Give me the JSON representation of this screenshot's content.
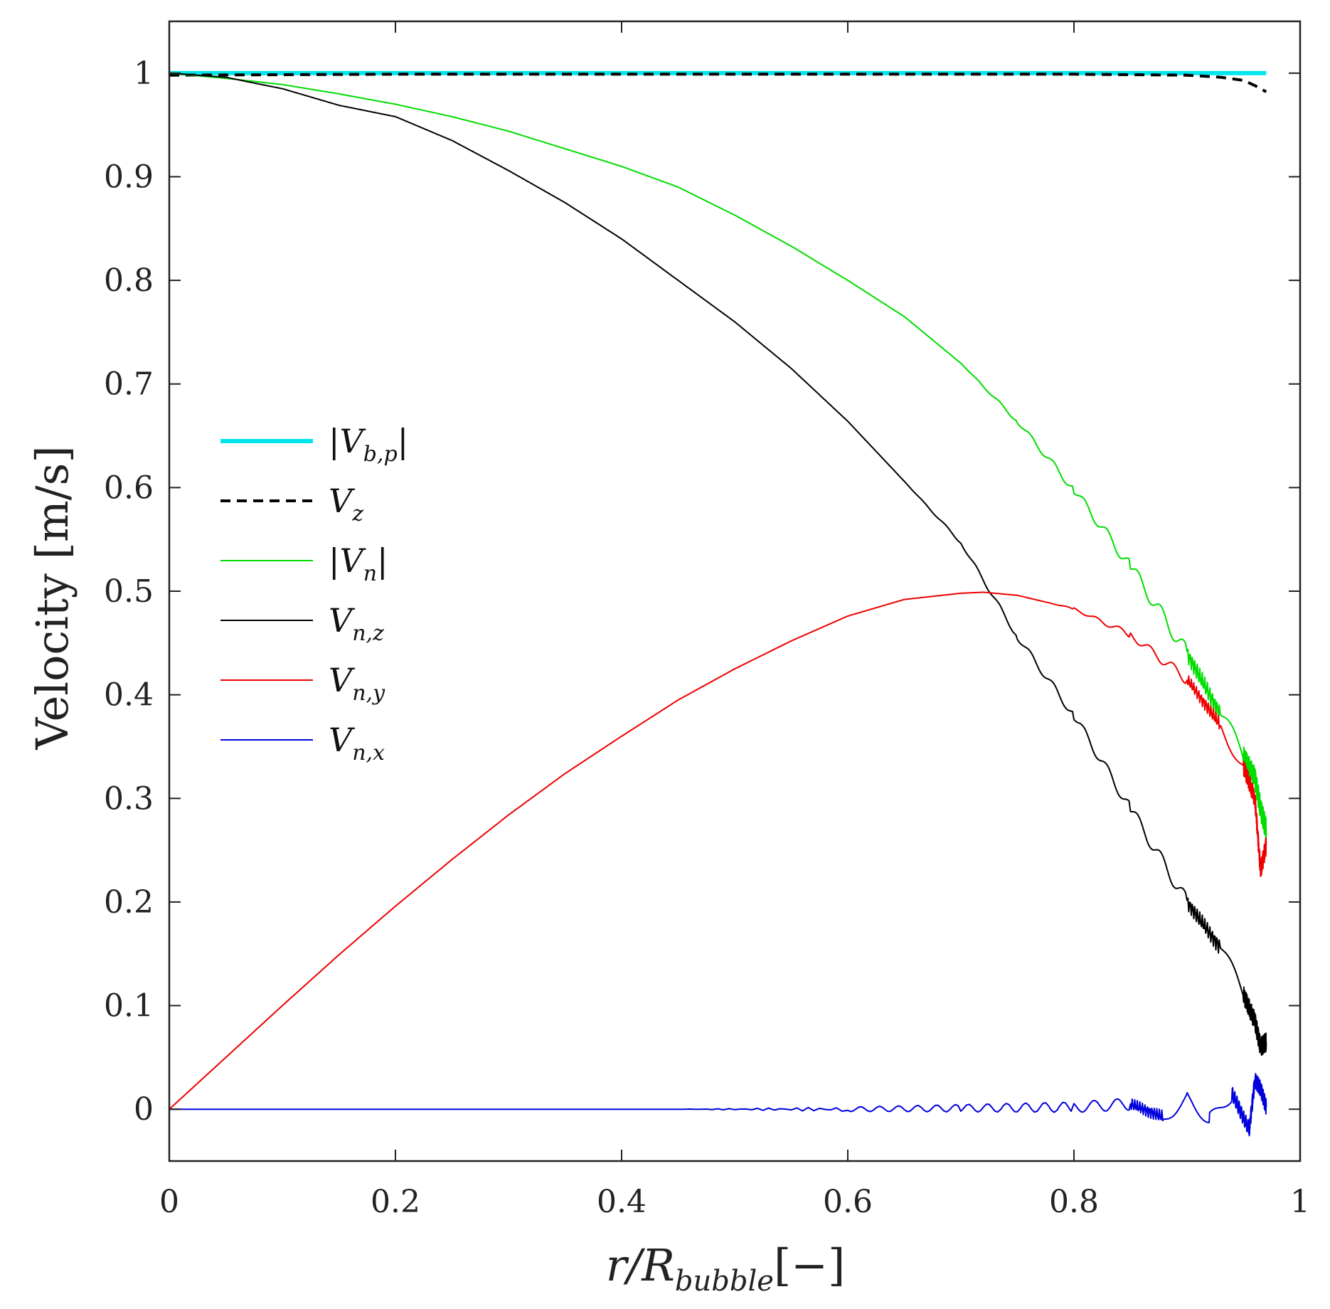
{
  "chart_data": {
    "type": "line",
    "xlabel": "r/R_bubble[−]",
    "xlabel_main": "r/R",
    "xlabel_sub": "bubble",
    "xlabel_suffix": "[−]",
    "ylabel": "Velocity [m/s]",
    "xlim": [
      0,
      1
    ],
    "ylim": [
      -0.05,
      1.05
    ],
    "xticks": [
      0,
      0.2,
      0.4,
      0.6,
      0.8,
      1
    ],
    "xtick_labels": [
      "0",
      "0.2",
      "0.4",
      "0.6",
      "0.8",
      "1"
    ],
    "yticks": [
      0,
      0.1,
      0.2,
      0.3,
      0.4,
      0.5,
      0.6,
      0.7,
      0.8,
      0.9,
      1
    ],
    "ytick_labels": [
      "0",
      "0.1",
      "0.2",
      "0.3",
      "0.4",
      "0.5",
      "0.6",
      "0.7",
      "0.8",
      "0.9",
      "1"
    ],
    "grid": false,
    "legend_position": "center-left",
    "series": [
      {
        "name": "|V_b,p|",
        "legend_main": "|V",
        "legend_sub": "b,p",
        "legend_suffix": "|",
        "color": "#00e5ee",
        "style": "solid-thick",
        "x": [
          0,
          0.97
        ],
        "y": [
          1.0,
          1.0
        ]
      },
      {
        "name": "V_z",
        "legend_main": "V",
        "legend_sub": "z",
        "legend_suffix": "",
        "color": "#000000",
        "style": "dashed",
        "x": [
          0,
          0.2,
          0.4,
          0.6,
          0.8,
          0.9,
          0.93,
          0.95,
          0.96,
          0.97
        ],
        "y": [
          0.998,
          0.999,
          0.999,
          0.999,
          0.999,
          0.998,
          0.996,
          0.993,
          0.988,
          0.982
        ]
      },
      {
        "name": "|V_n|",
        "legend_main": "|V",
        "legend_sub": "n",
        "legend_suffix": "|",
        "color": "#00dd00",
        "style": "solid",
        "x": [
          0,
          0.05,
          0.1,
          0.15,
          0.2,
          0.25,
          0.3,
          0.35,
          0.4,
          0.45,
          0.5,
          0.55,
          0.6,
          0.65,
          0.7,
          0.75,
          0.8,
          0.85,
          0.9,
          0.93,
          0.95,
          0.96,
          0.965,
          0.97
        ],
        "y": [
          1.0,
          0.995,
          0.989,
          0.98,
          0.97,
          0.958,
          0.944,
          0.927,
          0.91,
          0.89,
          0.863,
          0.833,
          0.8,
          0.765,
          0.72,
          0.664,
          0.598,
          0.524,
          0.44,
          0.38,
          0.34,
          0.32,
          0.29,
          0.27
        ]
      },
      {
        "name": "V_n,z",
        "legend_main": "V",
        "legend_sub": "n,z",
        "legend_suffix": "",
        "color": "#000000",
        "style": "solid",
        "x": [
          0,
          0.05,
          0.1,
          0.15,
          0.2,
          0.25,
          0.3,
          0.35,
          0.4,
          0.45,
          0.5,
          0.55,
          0.6,
          0.65,
          0.7,
          0.75,
          0.8,
          0.85,
          0.9,
          0.93,
          0.95,
          0.96,
          0.965,
          0.97
        ],
        "y": [
          1.0,
          0.996,
          0.985,
          0.969,
          0.958,
          0.935,
          0.906,
          0.875,
          0.84,
          0.8,
          0.76,
          0.715,
          0.664,
          0.606,
          0.547,
          0.456,
          0.38,
          0.29,
          0.2,
          0.155,
          0.11,
          0.085,
          0.06,
          0.065
        ]
      },
      {
        "name": "V_n,y",
        "legend_main": "V",
        "legend_sub": "n,y",
        "legend_suffix": "",
        "color": "#ee0000",
        "style": "solid",
        "x": [
          0,
          0.05,
          0.1,
          0.15,
          0.2,
          0.25,
          0.3,
          0.35,
          0.4,
          0.45,
          0.5,
          0.55,
          0.6,
          0.65,
          0.7,
          0.72,
          0.75,
          0.8,
          0.85,
          0.9,
          0.93,
          0.95,
          0.96,
          0.965,
          0.97
        ],
        "y": [
          0.0,
          0.05,
          0.1,
          0.149,
          0.196,
          0.241,
          0.284,
          0.324,
          0.36,
          0.395,
          0.425,
          0.452,
          0.476,
          0.492,
          0.498,
          0.499,
          0.496,
          0.483,
          0.458,
          0.415,
          0.37,
          0.33,
          0.3,
          0.23,
          0.255
        ]
      },
      {
        "name": "V_n,x",
        "legend_main": "V",
        "legend_sub": "n,x",
        "legend_suffix": "",
        "color": "#0000dd",
        "style": "solid",
        "x": [
          0,
          0.2,
          0.4,
          0.6,
          0.7,
          0.8,
          0.85,
          0.88,
          0.9,
          0.92,
          0.94,
          0.955,
          0.96,
          0.965,
          0.97
        ],
        "y": [
          0.0,
          0.0,
          0.0,
          0.0,
          0.001,
          0.002,
          0.005,
          -0.008,
          0.012,
          -0.01,
          0.015,
          -0.02,
          0.028,
          0.02,
          0.002
        ]
      }
    ]
  }
}
